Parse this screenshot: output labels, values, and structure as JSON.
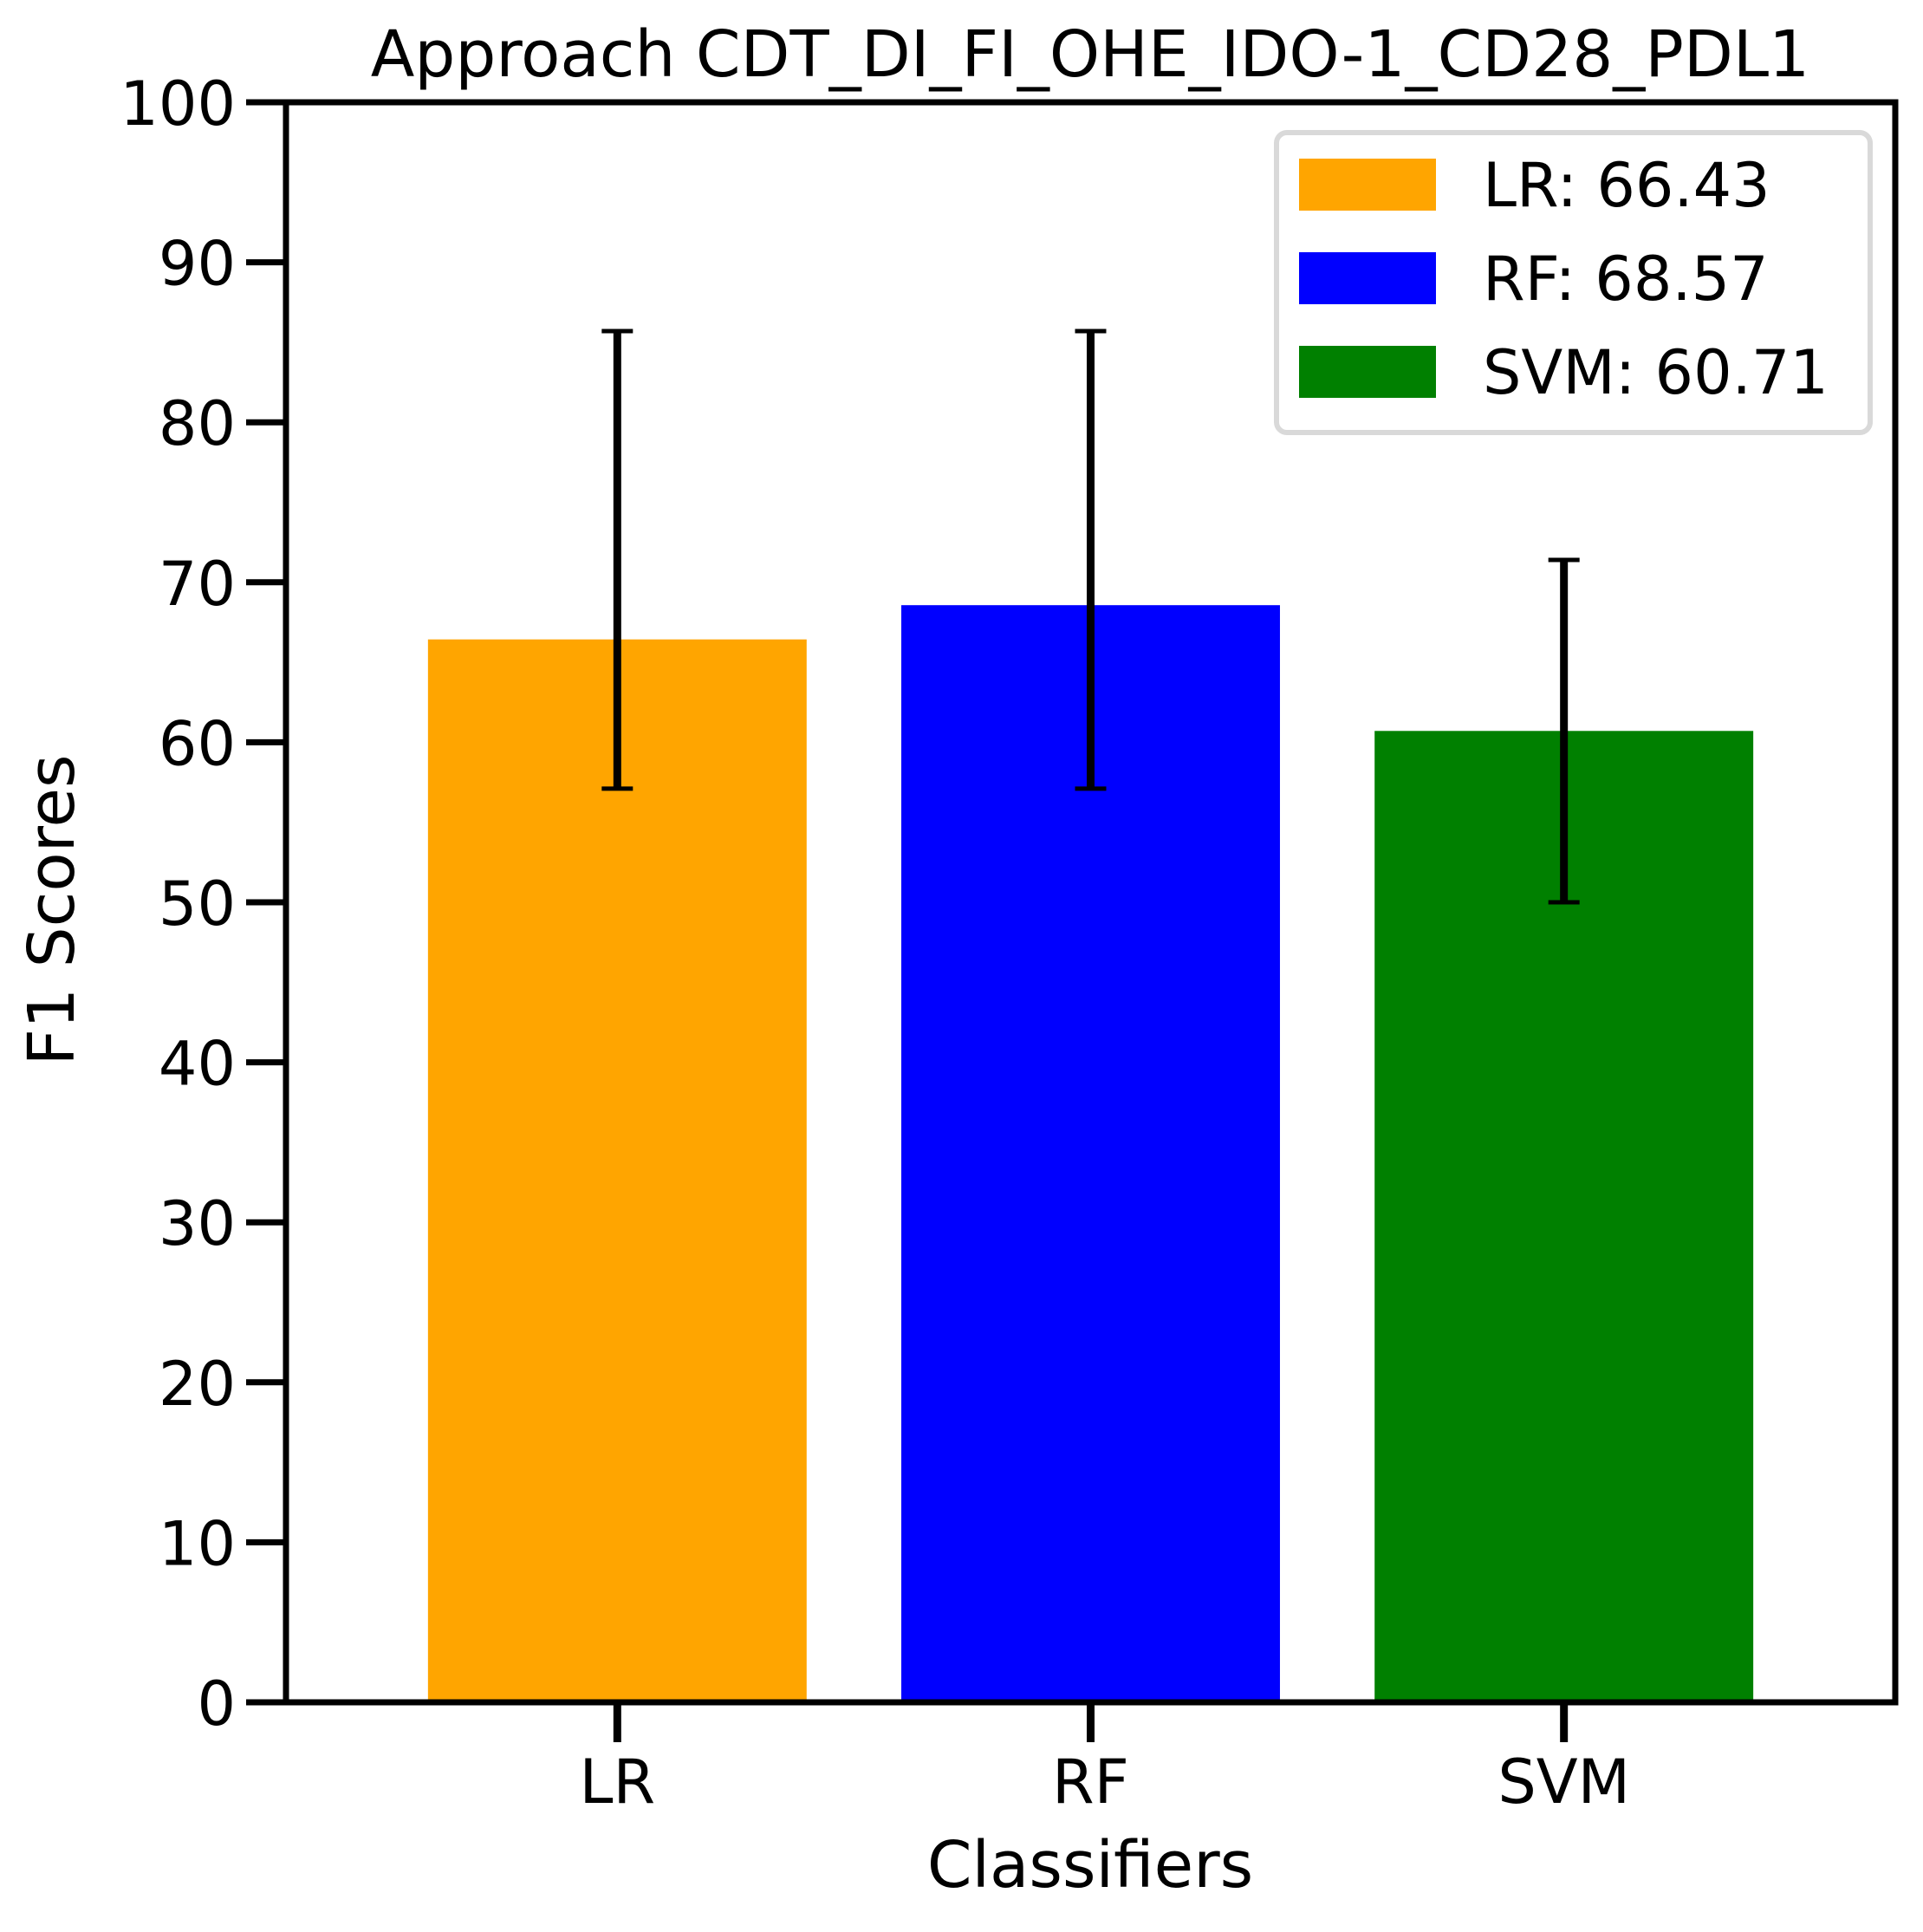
{
  "chart_data": {
    "type": "bar",
    "title": "Approach CDT_DI_FI_OHE_IDO-1_CD28_PDL1",
    "xlabel": "Classifiers",
    "ylabel": "F1 Scores",
    "categories": [
      "LR",
      "RF",
      "SVM"
    ],
    "values": [
      66.43,
      68.57,
      60.71
    ],
    "error_bars": [
      {
        "low": 57.1,
        "high": 85.7
      },
      {
        "low": 57.1,
        "high": 85.7
      },
      {
        "low": 50.0,
        "high": 71.4
      }
    ],
    "colors": [
      "#FFA500",
      "#0000FF",
      "#008000"
    ],
    "ylim": [
      0,
      100
    ],
    "yticks": [
      0,
      10,
      20,
      30,
      40,
      50,
      60,
      70,
      80,
      90,
      100
    ],
    "grid": false,
    "legend": {
      "position": "top-right",
      "entries": [
        "LR: 66.43",
        "RF: 68.57",
        "SVM: 60.71"
      ]
    }
  }
}
